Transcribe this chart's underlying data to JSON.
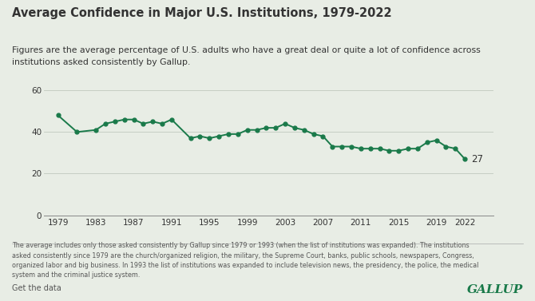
{
  "title": "Average Confidence in Major U.S. Institutions, 1979-2022",
  "subtitle": "Figures are the average percentage of U.S. adults who have a great deal or quite a lot of confidence across\ninstitutions asked consistently by Gallup.",
  "footnote": "The average includes only those asked consistently by Gallup since 1979 or 1993 (when the list of institutions was expanded). The institutions\nasked consistently since 1979 are the church/organized religion, the military, the Supreme Court, banks, public schools, newspapers, Congress,\norganized labor and big business. In 1993 the list of institutions was expanded to include television news, the presidency, the police, the medical\nsystem and the criminal justice system.",
  "get_data_text": "Get the data",
  "gallup_text": "GALLUP",
  "background_color": "#e8ede5",
  "line_color": "#1a7a4a",
  "marker_color": "#1a7a4a",
  "text_color": "#333333",
  "footnote_color": "#555555",
  "years": [
    1979,
    1981,
    1983,
    1984,
    1985,
    1986,
    1987,
    1988,
    1989,
    1990,
    1991,
    1993,
    1994,
    1995,
    1996,
    1997,
    1998,
    1999,
    2000,
    2001,
    2002,
    2003,
    2004,
    2005,
    2006,
    2007,
    2008,
    2009,
    2010,
    2011,
    2012,
    2013,
    2014,
    2015,
    2016,
    2017,
    2018,
    2019,
    2020,
    2021,
    2022
  ],
  "values": [
    48,
    40,
    41,
    44,
    45,
    46,
    46,
    44,
    45,
    44,
    46,
    37,
    38,
    37,
    38,
    39,
    39,
    41,
    41,
    42,
    42,
    44,
    42,
    41,
    39,
    38,
    33,
    33,
    33,
    32,
    32,
    32,
    31,
    31,
    32,
    32,
    35,
    36,
    33,
    32,
    27
  ],
  "ylim": [
    0,
    68
  ],
  "yticks": [
    0,
    20,
    40,
    60
  ],
  "xticks": [
    1979,
    1983,
    1987,
    1991,
    1995,
    1999,
    2003,
    2007,
    2011,
    2015,
    2019,
    2022
  ],
  "last_value_label": "27",
  "last_value_x": 2022,
  "last_value_y": 27,
  "xlim_left": 1977.5,
  "xlim_right": 2025
}
